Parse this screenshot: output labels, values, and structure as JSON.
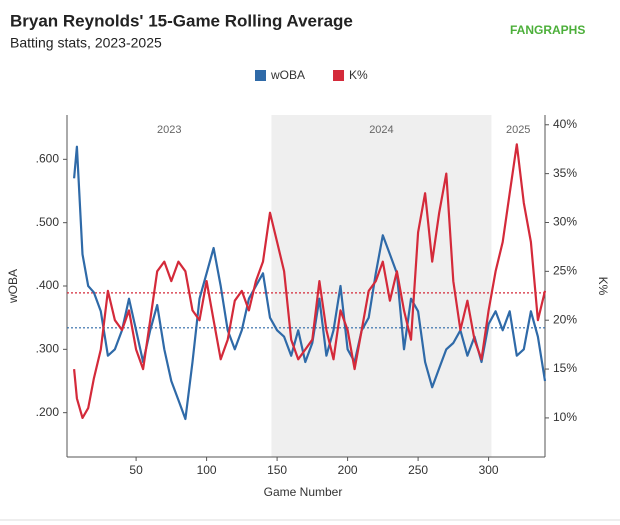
{
  "chart_data": {
    "type": "line",
    "title": "Bryan Reynolds' 15-Game Rolling Average",
    "subtitle": "Batting stats, 2023-2025",
    "brand": "FANGRAPHS",
    "xlabel": "Game Number",
    "ylabel": "wOBA",
    "y2label": "K%",
    "x": [
      6,
      8,
      12,
      16,
      20,
      25,
      30,
      35,
      40,
      45,
      50,
      55,
      60,
      65,
      70,
      75,
      80,
      85,
      90,
      95,
      100,
      105,
      110,
      115,
      120,
      125,
      130,
      135,
      140,
      145,
      150,
      155,
      160,
      165,
      170,
      175,
      180,
      185,
      190,
      195,
      200,
      205,
      210,
      215,
      220,
      225,
      230,
      235,
      240,
      245,
      250,
      255,
      260,
      265,
      270,
      275,
      280,
      285,
      290,
      295,
      300,
      305,
      310,
      315,
      320,
      325,
      330,
      335,
      340
    ],
    "series": [
      {
        "name": "wOBA",
        "color": "#2f6aa8",
        "axis": "y",
        "values": [
          0.57,
          0.62,
          0.45,
          0.4,
          0.39,
          0.36,
          0.29,
          0.3,
          0.33,
          0.38,
          0.33,
          0.28,
          0.33,
          0.37,
          0.3,
          0.25,
          0.22,
          0.19,
          0.28,
          0.38,
          0.42,
          0.46,
          0.4,
          0.33,
          0.3,
          0.33,
          0.38,
          0.4,
          0.42,
          0.35,
          0.33,
          0.32,
          0.29,
          0.33,
          0.28,
          0.31,
          0.38,
          0.29,
          0.33,
          0.4,
          0.3,
          0.28,
          0.33,
          0.35,
          0.42,
          0.48,
          0.45,
          0.42,
          0.3,
          0.38,
          0.36,
          0.28,
          0.24,
          0.27,
          0.3,
          0.31,
          0.33,
          0.29,
          0.32,
          0.28,
          0.34,
          0.36,
          0.33,
          0.36,
          0.29,
          0.3,
          0.36,
          0.32,
          0.25
        ]
      },
      {
        "name": "K%",
        "color": "#d42a3a",
        "axis": "y2",
        "values": [
          15,
          12,
          10,
          11,
          14,
          17,
          23,
          20,
          19,
          21,
          17,
          15,
          20,
          25,
          26,
          24,
          26,
          25,
          21,
          20,
          24,
          20,
          16,
          18,
          22,
          23,
          21,
          24,
          26,
          31,
          28,
          25,
          18,
          16,
          17,
          18,
          24,
          19,
          16,
          21,
          19,
          15,
          19,
          23,
          24,
          26,
          22,
          25,
          21,
          18,
          29,
          33,
          26,
          31,
          35,
          24,
          19,
          22,
          18,
          16,
          21,
          25,
          28,
          33,
          38,
          32,
          28,
          20,
          23
        ]
      }
    ],
    "hlines": [
      {
        "axis": "y",
        "value": 0.334,
        "color": "#2f6aa8"
      },
      {
        "axis": "y2",
        "value": 22.8,
        "color": "#d42a3a"
      }
    ],
    "eras": [
      {
        "label": "2023",
        "start": 1,
        "end": 146,
        "shaded": false
      },
      {
        "label": "2024",
        "start": 146,
        "end": 302,
        "shaded": true
      },
      {
        "label": "2025",
        "start": 302,
        "end": 340,
        "shaded": false
      }
    ],
    "xlim": [
      1,
      340
    ],
    "xticks": [
      50,
      100,
      150,
      200,
      250,
      300
    ],
    "ylim": [
      0.13,
      0.67
    ],
    "yticks": [
      {
        "value": 0.2,
        "label": ".200"
      },
      {
        "value": 0.3,
        "label": ".300"
      },
      {
        "value": 0.4,
        "label": ".400"
      },
      {
        "value": 0.5,
        "label": ".500"
      },
      {
        "value": 0.6,
        "label": ".600"
      }
    ],
    "y2lim": [
      6,
      41
    ],
    "y2ticks": [
      {
        "value": 10,
        "label": "10%"
      },
      {
        "value": 15,
        "label": "15%"
      },
      {
        "value": 20,
        "label": "20%"
      },
      {
        "value": 25,
        "label": "25%"
      },
      {
        "value": 30,
        "label": "30%"
      },
      {
        "value": 35,
        "label": "35%"
      },
      {
        "value": 40,
        "label": "40%"
      }
    ],
    "legend": "top"
  }
}
